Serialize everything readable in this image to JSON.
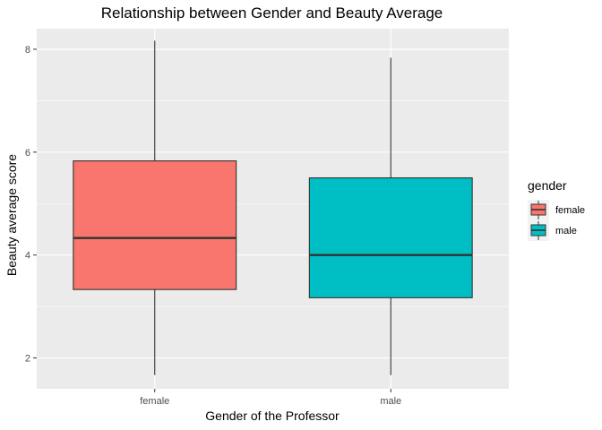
{
  "chart_data": {
    "type": "boxplot",
    "title": "Relationship between Gender and Beauty Average",
    "xlabel": "Gender of the Professor",
    "ylabel": "Beauty average score",
    "categories": [
      "female",
      "male"
    ],
    "ylim": [
      1.4,
      8.4
    ],
    "yticks": [
      2,
      4,
      6,
      8
    ],
    "grid": true,
    "legend": {
      "title": "gender",
      "position": "right",
      "entries": [
        "female",
        "male"
      ]
    },
    "colors": {
      "female": "#F8766D",
      "male": "#00BFC4",
      "panel": "#EBEBEB",
      "grid": "#FFFFFF"
    },
    "series": [
      {
        "name": "female",
        "whisker_low": 1.667,
        "q1": 3.33,
        "median": 4.33,
        "q3": 5.83,
        "whisker_high": 8.167
      },
      {
        "name": "male",
        "whisker_low": 1.667,
        "q1": 3.17,
        "median": 4.0,
        "q3": 5.5,
        "whisker_high": 7.833
      }
    ]
  }
}
